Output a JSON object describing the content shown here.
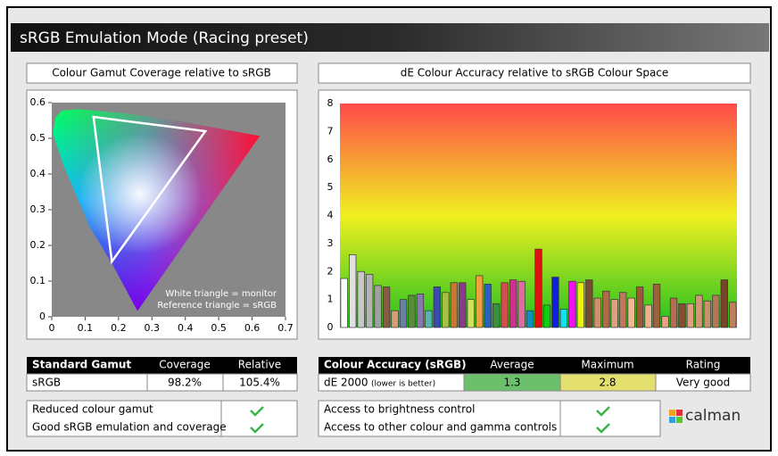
{
  "header": {
    "title": "sRGB Emulation Mode (Racing preset)"
  },
  "chart_data": [
    {
      "type": "gamut",
      "title": "Colour Gamut Coverage relative to sRGB",
      "xlim": [
        0,
        0.7
      ],
      "xticks": [
        0,
        0.1,
        0.2,
        0.3,
        0.4,
        0.5,
        0.6,
        0.7
      ],
      "ylim": [
        0,
        0.6
      ],
      "yticks": [
        0,
        0.1,
        0.2,
        0.3,
        0.4,
        0.5,
        0.6
      ],
      "triangle": {
        "x": [
          0.125,
          0.46,
          0.18
        ],
        "y": [
          0.56,
          0.52,
          0.155
        ]
      },
      "annotations": [
        "White triangle = monitor",
        "Reference triangle = sRGB"
      ]
    },
    {
      "type": "bar",
      "title": "dE Colour Accuracy relative to sRGB Colour Space",
      "categories": [
        null,
        null,
        null,
        null,
        null,
        null,
        null,
        null,
        null,
        null,
        null,
        null,
        null,
        null,
        null,
        null,
        null,
        null,
        null,
        null,
        null,
        null,
        null,
        null,
        null,
        null,
        null,
        null,
        null,
        null,
        null,
        null,
        null,
        null,
        null,
        null,
        null,
        null,
        null,
        null,
        null,
        null,
        null,
        null,
        null,
        null,
        null
      ],
      "values": [
        1.75,
        2.6,
        2.0,
        1.9,
        1.5,
        1.45,
        0.6,
        1.0,
        1.15,
        1.2,
        0.6,
        1.45,
        1.25,
        1.6,
        1.6,
        1.0,
        1.85,
        1.55,
        0.85,
        1.6,
        1.7,
        1.65,
        0.6,
        2.8,
        0.8,
        1.8,
        0.65,
        1.65,
        1.6,
        1.7,
        1.05,
        1.3,
        1.0,
        1.25,
        1.05,
        1.45,
        0.8,
        1.55,
        0.4,
        1.05,
        0.85,
        0.85,
        1.15,
        0.95,
        1.15,
        1.7,
        0.9
      ],
      "colors": [
        "#ffffff",
        "#e0e0e0",
        "#c8c8c8",
        "#b4b4b4",
        "#a0a0a0",
        "#8a5a44",
        "#d89a7a",
        "#6a7ea8",
        "#5a8a3a",
        "#8a78b0",
        "#58b4b0",
        "#3a4ab0",
        "#a8c040",
        "#c87830",
        "#8a3a8a",
        "#d0e060",
        "#f0a040",
        "#2a60c0",
        "#3a9040",
        "#d05050",
        "#d03090",
        "#e06aa0",
        "#1090c0",
        "#e01010",
        "#10d010",
        "#1020e0",
        "#10e0f0",
        "#f010f0",
        "#f0f010",
        "#7a4a30",
        "#d09070",
        "#b06a4a",
        "#e0a080",
        "#c07858",
        "#f0b898",
        "#9a5a3a",
        "#f0b090",
        "#a0603a",
        "#e8a088",
        "#b07050",
        "#8a4a30",
        "#e0a080",
        "#d09878",
        "#c89070",
        "#b07858",
        "#7a4428",
        "#c08060"
      ],
      "ylim": [
        0,
        8
      ],
      "yticks": [
        0,
        1,
        2,
        3,
        4,
        5,
        6,
        7,
        8
      ]
    }
  ],
  "gamut_table": {
    "header": [
      "Standard Gamut",
      "Coverage",
      "Relative"
    ],
    "row": [
      "sRGB",
      "98.2%",
      "105.4%"
    ]
  },
  "accuracy_table": {
    "header": [
      "Colour Accuracy (sRGB)",
      "Average",
      "Maximum",
      "Rating"
    ],
    "row": [
      "dE 2000",
      "(lower is better)",
      "1.3",
      "2.8",
      "Very good"
    ]
  },
  "checks_left": [
    "Reduced colour gamut",
    "Good sRGB emulation and coverage"
  ],
  "checks_right": [
    "Access to brightness control",
    "Access to other colour and gamma controls"
  ],
  "logo": "calman"
}
